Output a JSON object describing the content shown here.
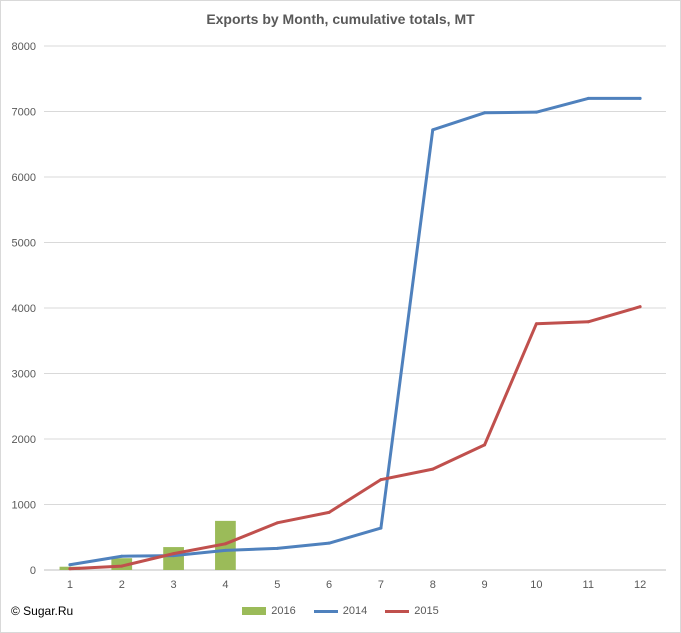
{
  "chart_data": {
    "type": "bar+line",
    "title": "Exports by Month, cumulative totals, MT",
    "x": [
      "1",
      "2",
      "3",
      "4",
      "5",
      "6",
      "7",
      "8",
      "9",
      "10",
      "11",
      "12"
    ],
    "ylim": [
      0,
      8000
    ],
    "yticks": [
      "0",
      "1000",
      "2000",
      "3000",
      "4000",
      "5000",
      "6000",
      "7000",
      "8000"
    ],
    "grid": true,
    "legend_position": "bottom",
    "series": [
      {
        "name": "2016",
        "type": "bar",
        "color": "#9bbb59",
        "values": [
          50,
          180,
          350,
          750,
          null,
          null,
          null,
          null,
          null,
          null,
          null,
          null
        ]
      },
      {
        "name": "2014",
        "type": "line",
        "color": "#4f81bd",
        "values": [
          80,
          210,
          220,
          300,
          330,
          410,
          640,
          6720,
          6980,
          6990,
          7200,
          7200
        ]
      },
      {
        "name": "2015",
        "type": "line",
        "color": "#c0504d",
        "values": [
          20,
          60,
          250,
          400,
          720,
          880,
          1380,
          1540,
          1910,
          3760,
          3790,
          4020
        ]
      }
    ]
  },
  "copyright": "© Sugar.Ru"
}
